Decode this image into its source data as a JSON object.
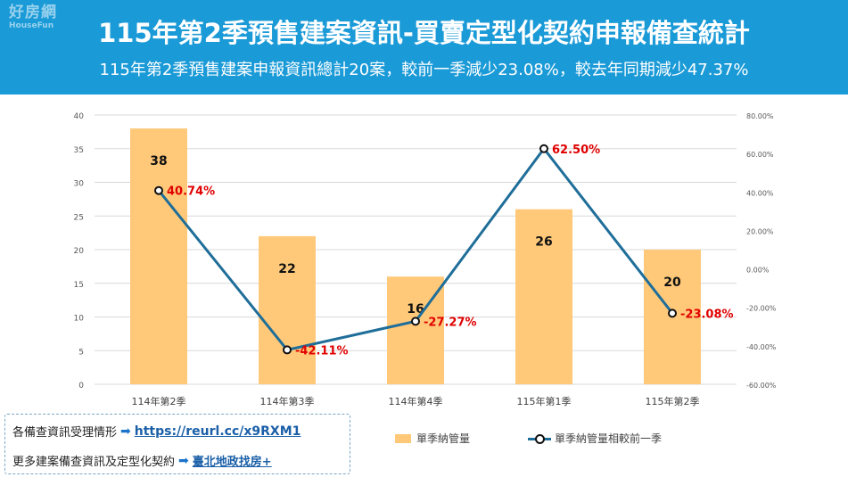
{
  "header": {
    "logo_line1": "好房網",
    "logo_line2": "HouseFun",
    "title": "115年第2季預售建案資訊-買賣定型化契約申報備查統計",
    "subtitle": "115年第2季預售建案申報資訊總計20案，較前一季減少23.08%，較去年同期減少47.37%",
    "background_color": "#1a9ad7"
  },
  "chart_data": {
    "type": "bar",
    "categories": [
      "114年第2季",
      "114年第3季",
      "114年第4季",
      "115年第1季",
      "115年第2季"
    ],
    "series": [
      {
        "name": "單季納管量",
        "type": "bar",
        "axis": "left",
        "values": [
          38,
          22,
          16,
          26,
          20
        ],
        "data_labels": [
          "38",
          "22",
          "16",
          "26",
          "20"
        ],
        "color": "#ffc979"
      },
      {
        "name": "單季納管量相較前一季",
        "type": "line",
        "axis": "right",
        "values": [
          40.74,
          -42.11,
          -27.27,
          62.5,
          -23.08
        ],
        "data_labels": [
          "40.74%",
          "-42.11%",
          "-27.27%",
          "62.50%",
          "-23.08%"
        ],
        "color": "#1f6e99",
        "label_color": "#e00000"
      }
    ],
    "y_left": {
      "min": 0,
      "max": 40,
      "ticks": [
        "0",
        "5",
        "10",
        "15",
        "20",
        "25",
        "30",
        "35",
        "40"
      ]
    },
    "y_right": {
      "min": -60,
      "max": 80,
      "ticks": [
        "-60.00%",
        "-40.00%",
        "-20.00%",
        "0.00%",
        "20.00%",
        "40.00%",
        "60.00%",
        "80.00%"
      ]
    },
    "grid": true,
    "legend": "bottom"
  },
  "info": {
    "row1_label": "各備查資訊受理情形",
    "row1_link": "https://reurl.cc/x9RXM1",
    "row2_label": "更多建案備查資訊及定型化契約",
    "row2_link": "臺北地政找房+",
    "arrow_icon": "arrow-right-icon"
  }
}
